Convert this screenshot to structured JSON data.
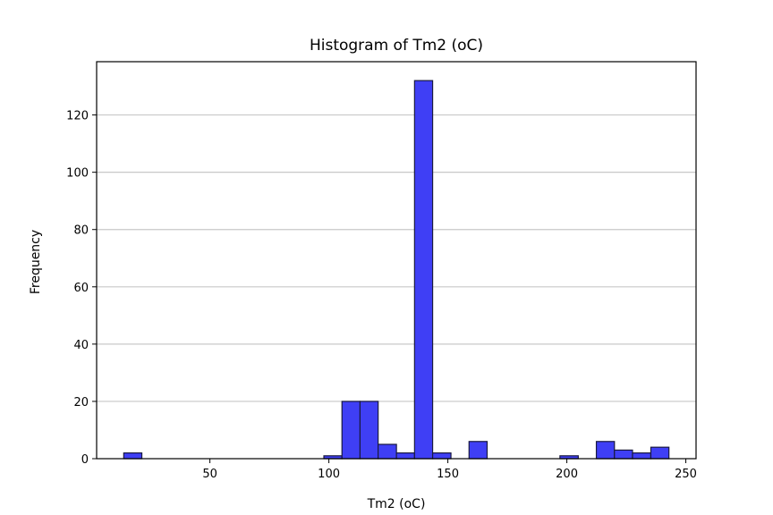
{
  "chart_data": {
    "type": "bar",
    "title": "Histogram of Tm2 (oC)",
    "xlabel": "Tm2 (oC)",
    "ylabel": "Frequency",
    "xlim": [
      2.4,
      254.3
    ],
    "ylim": [
      0,
      138.6
    ],
    "x_ticks": [
      50,
      100,
      150,
      200,
      250
    ],
    "y_ticks": [
      0,
      20,
      40,
      60,
      80,
      100,
      120
    ],
    "grid": "y",
    "bar_color": "#3f3ff5",
    "edge_color": "#1a1a40",
    "bins": [
      {
        "x0": 13.8,
        "x1": 21.4,
        "count": 2
      },
      {
        "x0": 97.9,
        "x1": 105.5,
        "count": 1
      },
      {
        "x0": 105.5,
        "x1": 113.1,
        "count": 20
      },
      {
        "x0": 113.1,
        "x1": 120.7,
        "count": 20
      },
      {
        "x0": 120.7,
        "x1": 128.4,
        "count": 5
      },
      {
        "x0": 128.4,
        "x1": 136.0,
        "count": 2
      },
      {
        "x0": 136.0,
        "x1": 143.6,
        "count": 132
      },
      {
        "x0": 143.6,
        "x1": 151.3,
        "count": 2
      },
      {
        "x0": 158.9,
        "x1": 166.5,
        "count": 6
      },
      {
        "x0": 197.1,
        "x1": 204.8,
        "count": 1
      },
      {
        "x0": 212.4,
        "x1": 220.0,
        "count": 6
      },
      {
        "x0": 220.0,
        "x1": 227.6,
        "count": 3
      },
      {
        "x0": 227.6,
        "x1": 235.3,
        "count": 2
      },
      {
        "x0": 235.3,
        "x1": 242.9,
        "count": 4
      }
    ]
  }
}
